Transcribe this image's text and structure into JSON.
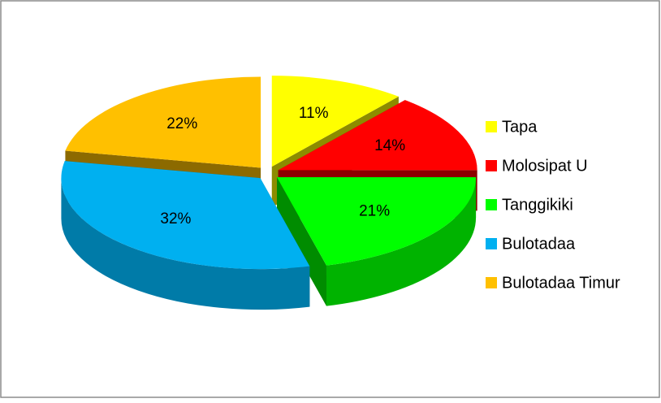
{
  "chart_data": {
    "type": "pie",
    "categories": [
      "Tapa",
      "Molosipat U",
      "Tanggikiki",
      "Bulotadaa",
      "Bulotadaa Timur"
    ],
    "values": [
      11,
      14,
      21,
      32,
      22
    ],
    "value_labels": [
      "11%",
      "14%",
      "21%",
      "32%",
      "22%"
    ],
    "colors": [
      "#ffff00",
      "#ff0000",
      "#00ff00",
      "#00b0f0",
      "#ffc000"
    ],
    "legend": "right"
  }
}
